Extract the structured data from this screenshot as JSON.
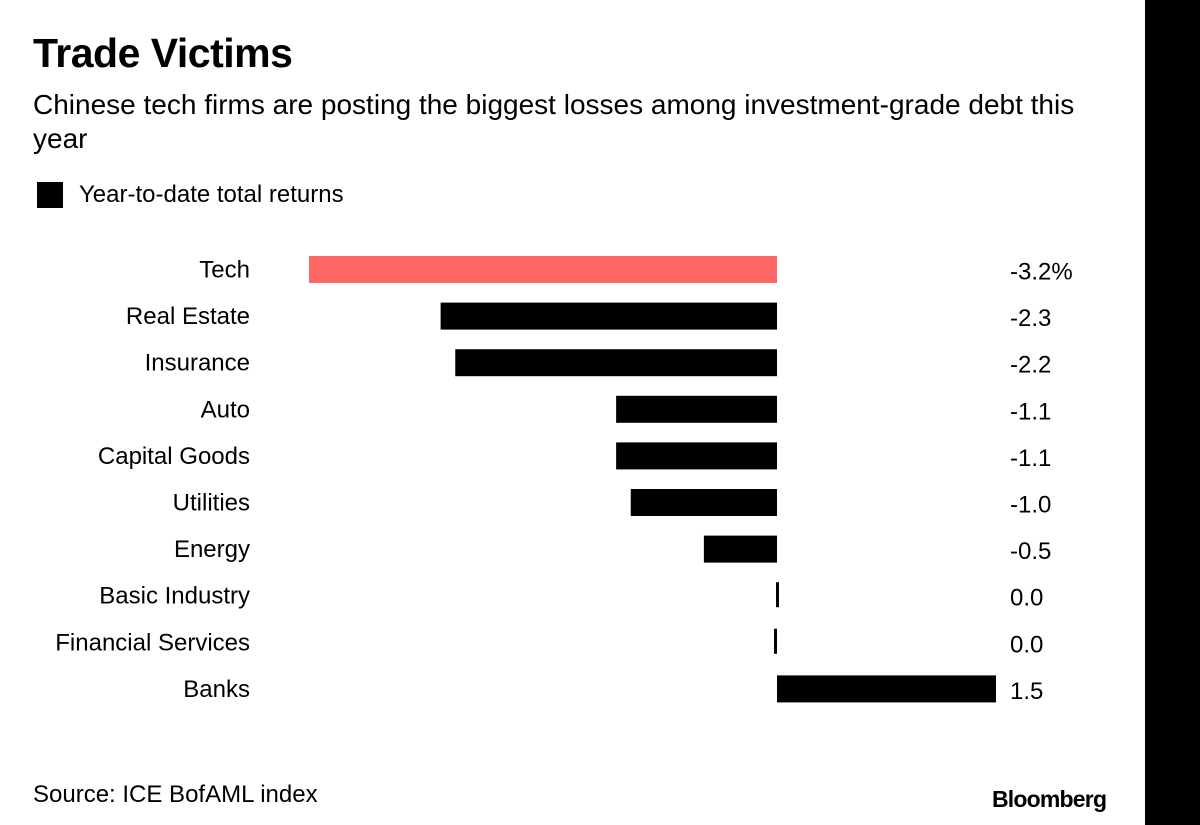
{
  "title": "Trade Victims",
  "subtitle": "Chinese tech firms are posting the biggest losses among investment-grade debt this year",
  "legend": {
    "label": "Year-to-date total returns",
    "color": "#000000"
  },
  "source": "Source: ICE BofAML index",
  "logo": "Bloomberg",
  "colors": {
    "highlight": "#ff6666",
    "bar": "#000000",
    "background": "#ffffff",
    "frame": "#000000"
  },
  "chart_data": {
    "type": "bar",
    "orientation": "horizontal",
    "title": "Trade Victims",
    "subtitle": "Chinese tech firms are posting the biggest losses among investment-grade debt this year",
    "xlabel": "",
    "ylabel": "",
    "unit": "%",
    "grid": false,
    "legend_position": "top-left",
    "xlim": [
      -3.2,
      1.5
    ],
    "categories": [
      "Tech",
      "Real Estate",
      "Insurance",
      "Auto",
      "Capital Goods",
      "Utilities",
      "Energy",
      "Basic Industry",
      "Financial Services",
      "Banks"
    ],
    "series": [
      {
        "name": "Year-to-date total returns",
        "values": [
          -3.2,
          -2.3,
          -2.2,
          -1.1,
          -1.1,
          -1.0,
          -0.5,
          0.0,
          0.0,
          1.5
        ],
        "value_labels": [
          "-3.2%",
          "-2.3",
          "-2.2",
          "-1.1",
          "-1.1",
          "-1.0",
          "-0.5",
          "0.0",
          "0.0",
          "1.5"
        ],
        "highlight": [
          "Tech"
        ]
      }
    ]
  }
}
